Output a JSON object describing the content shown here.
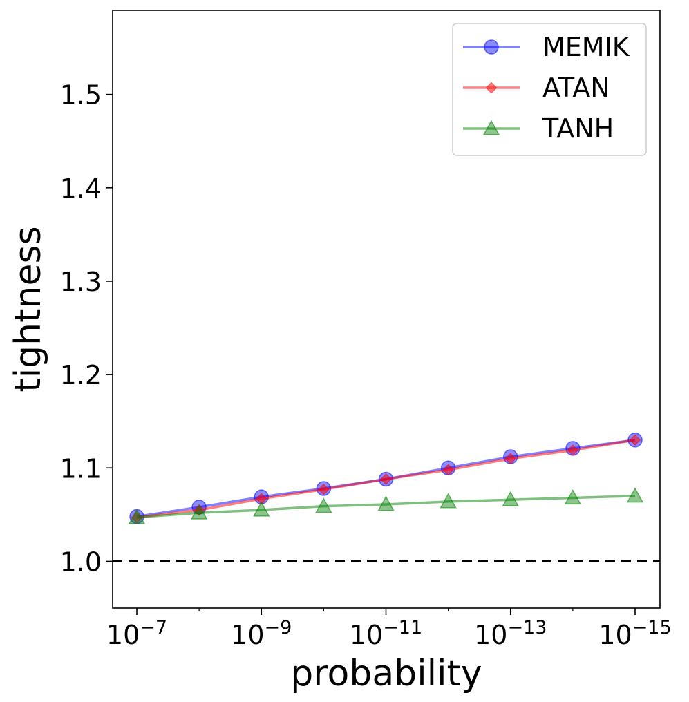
{
  "chart_data": {
    "type": "line",
    "title": "",
    "xlabel": "probability",
    "ylabel": "tightness",
    "x_scale": "log",
    "x_direction": "decreasing",
    "x": [
      1e-07,
      1e-08,
      1e-09,
      1e-10,
      1e-11,
      1e-12,
      1e-13,
      1e-14,
      1e-15
    ],
    "x_ticks": [
      {
        "value": 1e-07,
        "base": "10",
        "exp": "−7"
      },
      {
        "value": 1e-09,
        "base": "10",
        "exp": "−9"
      },
      {
        "value": 1e-11,
        "base": "10",
        "exp": "−11"
      },
      {
        "value": 1e-13,
        "base": "10",
        "exp": "−13"
      },
      {
        "value": 1e-15,
        "base": "10",
        "exp": "−15"
      }
    ],
    "y_ticks": [
      {
        "value": 1.0,
        "label": "1.0"
      },
      {
        "value": 1.1,
        "label": "1.1"
      },
      {
        "value": 1.2,
        "label": "1.2"
      },
      {
        "value": 1.3,
        "label": "1.3"
      },
      {
        "value": 1.4,
        "label": "1.4"
      },
      {
        "value": 1.5,
        "label": "1.5"
      }
    ],
    "ylim": [
      0.95,
      1.59
    ],
    "reference_line": {
      "y": 1.0,
      "style": "dashed",
      "color": "#000000"
    },
    "grid": false,
    "legend_position": "top-right",
    "series": [
      {
        "name": "MEMIK",
        "color": "#0000ff",
        "marker": "circle",
        "values": [
          1.048,
          1.058,
          1.069,
          1.078,
          1.088,
          1.1,
          1.112,
          1.121,
          1.13
        ]
      },
      {
        "name": "ATAN",
        "color": "#ff0000",
        "marker": "diamond",
        "values": [
          1.047,
          1.055,
          1.067,
          1.077,
          1.088,
          1.098,
          1.11,
          1.119,
          1.13
        ]
      },
      {
        "name": "TANH",
        "color": "#008000",
        "marker": "triangle",
        "values": [
          1.047,
          1.052,
          1.055,
          1.059,
          1.061,
          1.064,
          1.066,
          1.068,
          1.07
        ]
      }
    ]
  }
}
